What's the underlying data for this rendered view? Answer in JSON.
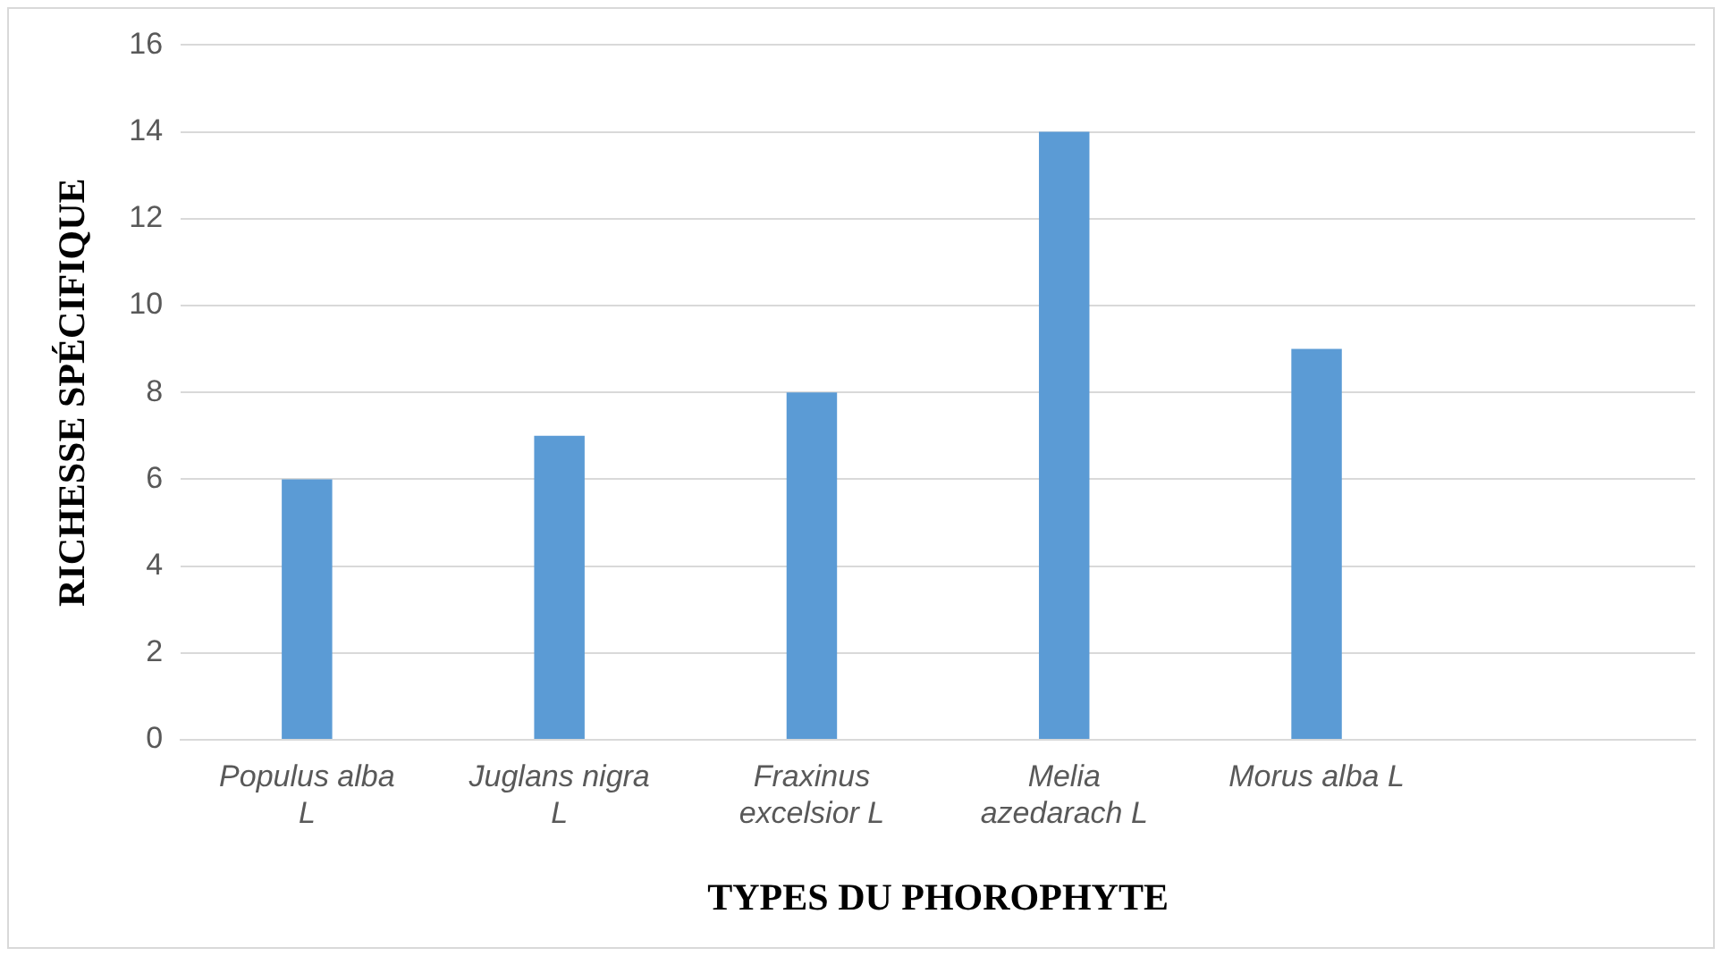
{
  "chart_data": {
    "type": "bar",
    "xlabel": "TYPES DU PHOROPHYTE",
    "ylabel": "RICHESSE SPÉCIFIQUE",
    "categories": [
      "Populus alba L",
      "Juglans nigra L",
      "Fraxinus excelsior L",
      "Melia azedarach L",
      "Morus alba L",
      null
    ],
    "values": [
      6,
      7,
      8,
      14,
      9,
      null
    ],
    "color": "#5b9bd5",
    "ylim": [
      0,
      16
    ],
    "yticks": [
      0,
      2,
      4,
      6,
      8,
      10,
      12,
      14,
      16
    ],
    "grid": "y",
    "legend": false
  }
}
